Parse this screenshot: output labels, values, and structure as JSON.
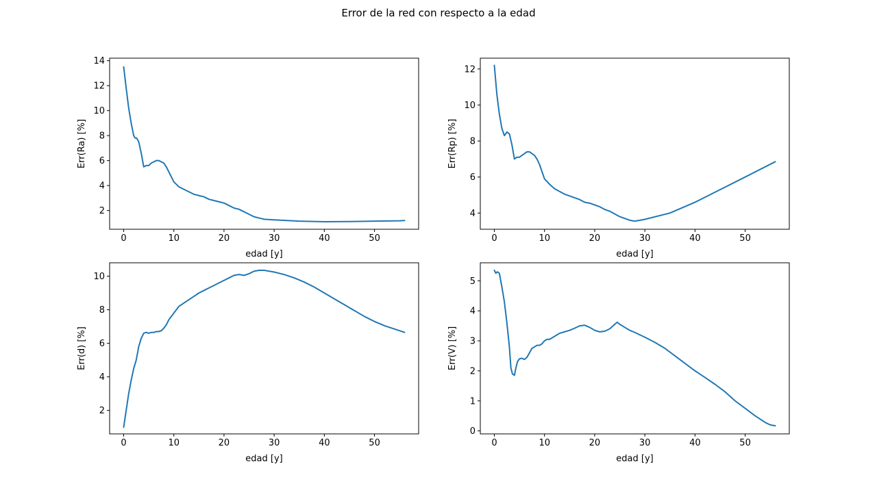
{
  "figure": {
    "title": "Error de la red con respecto a la edad",
    "line_color": "#1f77b4"
  },
  "chart_data": [
    {
      "type": "line",
      "xlabel": "edad [y]",
      "ylabel": "Err(Ra) [%]",
      "xlim": [
        -2.8,
        58.8
      ],
      "ylim": [
        0.5,
        14.2
      ],
      "xticks": [
        0,
        10,
        20,
        30,
        40,
        50
      ],
      "yticks": [
        2,
        4,
        6,
        8,
        10,
        12,
        14
      ],
      "grid": false,
      "x": [
        0,
        0.5,
        1,
        1.5,
        2,
        2.3,
        2.6,
        3,
        3.5,
        4,
        4.5,
        5,
        5.5,
        6,
        6.5,
        7,
        7.5,
        8,
        8.5,
        9,
        10,
        11,
        12,
        13,
        14,
        15,
        16,
        17,
        18,
        19,
        20,
        21,
        22,
        23,
        24,
        25,
        26,
        27,
        28,
        30,
        35,
        40,
        45,
        50,
        55,
        56
      ],
      "y": [
        13.5,
        11.8,
        10.2,
        9.0,
        8.0,
        7.8,
        7.8,
        7.5,
        6.6,
        5.5,
        5.6,
        5.6,
        5.8,
        5.9,
        6.0,
        6.0,
        5.9,
        5.8,
        5.5,
        5.1,
        4.3,
        3.9,
        3.7,
        3.5,
        3.3,
        3.2,
        3.1,
        2.9,
        2.8,
        2.7,
        2.6,
        2.4,
        2.2,
        2.1,
        1.9,
        1.7,
        1.5,
        1.4,
        1.3,
        1.25,
        1.15,
        1.1,
        1.12,
        1.15,
        1.18,
        1.2
      ]
    },
    {
      "type": "line",
      "xlabel": "edad [y]",
      "ylabel": "Err(Rp) [%]",
      "xlim": [
        -2.8,
        58.8
      ],
      "ylim": [
        3.1,
        12.6
      ],
      "xticks": [
        0,
        10,
        20,
        30,
        40,
        50
      ],
      "yticks": [
        4,
        6,
        8,
        10,
        12
      ],
      "grid": false,
      "x": [
        0,
        0.5,
        1,
        1.5,
        2,
        2.5,
        3,
        3.5,
        4,
        4.5,
        5,
        5.5,
        6,
        6.5,
        7,
        7.5,
        8,
        8.5,
        9,
        10,
        11,
        12,
        13,
        14,
        15,
        16,
        17,
        18,
        19,
        20,
        21,
        22,
        23,
        24,
        25,
        26,
        27,
        28,
        29,
        30,
        35,
        40,
        45,
        50,
        56
      ],
      "y": [
        12.2,
        10.6,
        9.5,
        8.7,
        8.3,
        8.5,
        8.4,
        7.8,
        7.0,
        7.1,
        7.1,
        7.2,
        7.3,
        7.4,
        7.4,
        7.3,
        7.2,
        7.0,
        6.7,
        5.9,
        5.6,
        5.35,
        5.2,
        5.05,
        4.95,
        4.85,
        4.75,
        4.6,
        4.55,
        4.45,
        4.35,
        4.2,
        4.1,
        3.95,
        3.8,
        3.7,
        3.6,
        3.55,
        3.6,
        3.65,
        4.0,
        4.6,
        5.3,
        6.0,
        6.85
      ]
    },
    {
      "type": "line",
      "xlabel": "edad [y]",
      "ylabel": "Err(d) [%]",
      "xlim": [
        -2.8,
        58.8
      ],
      "ylim": [
        0.6,
        10.8
      ],
      "xticks": [
        0,
        10,
        20,
        30,
        40,
        50
      ],
      "yticks": [
        2,
        4,
        6,
        8,
        10
      ],
      "grid": false,
      "x": [
        0,
        0.5,
        1,
        1.5,
        2,
        2.5,
        3,
        3.5,
        4,
        4.5,
        5,
        5.5,
        6,
        6.5,
        7,
        7.5,
        8,
        8.5,
        9,
        10,
        11,
        12,
        13,
        14,
        15,
        16,
        17,
        18,
        19,
        20,
        21,
        22,
        23,
        24,
        25,
        26,
        27,
        28,
        29,
        30,
        32,
        34,
        36,
        38,
        40,
        42,
        44,
        46,
        48,
        50,
        52,
        54,
        56
      ],
      "y": [
        1.0,
        2.0,
        3.0,
        3.8,
        4.5,
        5.0,
        5.8,
        6.3,
        6.6,
        6.65,
        6.6,
        6.65,
        6.65,
        6.7,
        6.7,
        6.75,
        6.9,
        7.1,
        7.4,
        7.8,
        8.2,
        8.4,
        8.6,
        8.8,
        9.0,
        9.15,
        9.3,
        9.45,
        9.6,
        9.75,
        9.9,
        10.05,
        10.1,
        10.05,
        10.15,
        10.3,
        10.35,
        10.35,
        10.3,
        10.25,
        10.1,
        9.9,
        9.65,
        9.35,
        9.0,
        8.65,
        8.3,
        7.95,
        7.6,
        7.3,
        7.05,
        6.85,
        6.65
      ]
    },
    {
      "type": "line",
      "xlabel": "edad [y]",
      "ylabel": "Err(V) [%]",
      "xlim": [
        -2.8,
        58.8
      ],
      "ylim": [
        -0.1,
        5.6
      ],
      "xticks": [
        0,
        10,
        20,
        30,
        40,
        50
      ],
      "yticks": [
        0,
        1,
        2,
        3,
        4,
        5
      ],
      "grid": false,
      "x": [
        0,
        0.3,
        0.6,
        1,
        1.5,
        2,
        2.5,
        3,
        3.3,
        3.6,
        4,
        4.3,
        4.6,
        5,
        5.5,
        6,
        6.5,
        7,
        7.5,
        8,
        8.5,
        9,
        9.5,
        10,
        10.5,
        11,
        12,
        13,
        14,
        15,
        16,
        17,
        18,
        19,
        20,
        21,
        22,
        23,
        24,
        24.5,
        25,
        26,
        27,
        28,
        29,
        30,
        32,
        34,
        36,
        38,
        40,
        42,
        44,
        46,
        48,
        50,
        52,
        54,
        55,
        56
      ],
      "y": [
        5.35,
        5.25,
        5.3,
        5.25,
        4.8,
        4.3,
        3.6,
        2.8,
        2.1,
        1.9,
        1.85,
        2.1,
        2.3,
        2.4,
        2.42,
        2.38,
        2.45,
        2.6,
        2.75,
        2.8,
        2.85,
        2.85,
        2.9,
        3.0,
        3.05,
        3.05,
        3.15,
        3.25,
        3.3,
        3.35,
        3.42,
        3.5,
        3.52,
        3.45,
        3.35,
        3.3,
        3.32,
        3.4,
        3.55,
        3.62,
        3.55,
        3.45,
        3.35,
        3.28,
        3.2,
        3.12,
        2.95,
        2.75,
        2.5,
        2.25,
        2.0,
        1.78,
        1.55,
        1.3,
        1.0,
        0.75,
        0.5,
        0.28,
        0.2,
        0.17
      ]
    }
  ]
}
